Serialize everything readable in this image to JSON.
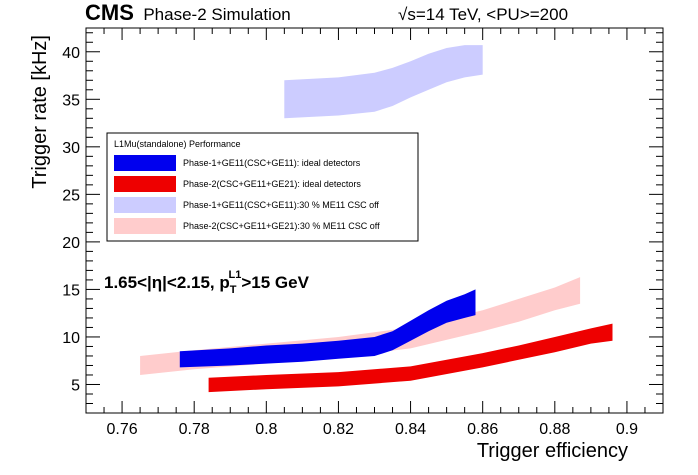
{
  "header": {
    "experiment": "CMS",
    "subtitle": "Phase-2 Simulation",
    "sqrt": "√",
    "energy": "s=14 TeV, <PU>=200"
  },
  "annotation": {
    "main": "1.65<|η|<2.15, p",
    "sub": "T",
    "sup": "L1",
    "suffix": ">15 GeV"
  },
  "legend": {
    "title": "L1Mu(standalone) Performance",
    "placement": "center-left"
  },
  "chart_data": {
    "type": "area",
    "xlabel": "Trigger efficiency",
    "ylabel": "Trigger rate [kHz]",
    "xlim": [
      0.75,
      0.91
    ],
    "ylim": [
      2,
      42.5
    ],
    "grid": false,
    "xticks": [
      "0.76",
      "0.78",
      "0.8",
      "0.82",
      "0.84",
      "0.86",
      "0.88",
      "0.9"
    ],
    "yticks": [
      "5",
      "10",
      "15",
      "20",
      "25",
      "30",
      "35",
      "40"
    ],
    "series": [
      {
        "name": "Phase-1+GE11(CSC+GE11): ideal detectors",
        "color": "#0000ee",
        "x": [
          0.776,
          0.79,
          0.8,
          0.81,
          0.82,
          0.83,
          0.835,
          0.84,
          0.845,
          0.85,
          0.855,
          0.858
        ],
        "y_low": [
          6.8,
          7.0,
          7.2,
          7.4,
          7.7,
          8.0,
          8.6,
          9.6,
          10.6,
          11.5,
          12.0,
          12.3
        ],
        "y_high": [
          8.5,
          8.8,
          9.1,
          9.3,
          9.6,
          10.0,
          10.6,
          11.7,
          12.8,
          13.8,
          14.5,
          15.0
        ]
      },
      {
        "name": "Phase-2(CSC+GE11+GE21): ideal detectors",
        "color": "#ee0000",
        "x": [
          0.784,
          0.8,
          0.82,
          0.84,
          0.86,
          0.87,
          0.88,
          0.89,
          0.896
        ],
        "y_low": [
          4.2,
          4.5,
          4.8,
          5.4,
          6.8,
          7.6,
          8.4,
          9.3,
          9.6
        ],
        "y_high": [
          5.7,
          6.0,
          6.3,
          6.9,
          8.3,
          9.1,
          10.0,
          10.9,
          11.4
        ]
      },
      {
        "name": "Phase-1+GE11(CSC+GE11):30 % ME11 CSC off",
        "color": "#ccccff",
        "x": [
          0.805,
          0.82,
          0.83,
          0.835,
          0.84,
          0.845,
          0.85,
          0.855,
          0.86
        ],
        "y_low": [
          33.0,
          33.3,
          33.7,
          34.3,
          35.2,
          36.0,
          36.8,
          37.3,
          37.6
        ],
        "y_high": [
          37.0,
          37.3,
          37.8,
          38.3,
          39.0,
          39.8,
          40.4,
          40.7,
          40.7
        ]
      },
      {
        "name": "Phase-2(CSC+GE11+GE21):30 % ME11 CSC off",
        "color": "#ffcccc",
        "x": [
          0.765,
          0.78,
          0.8,
          0.82,
          0.84,
          0.86,
          0.87,
          0.88,
          0.887
        ],
        "y_low": [
          6.0,
          6.6,
          7.2,
          7.9,
          8.8,
          10.6,
          11.6,
          12.8,
          13.5
        ],
        "y_high": [
          8.0,
          8.6,
          9.3,
          10.0,
          11.0,
          12.8,
          14.0,
          15.2,
          16.3
        ]
      }
    ]
  }
}
